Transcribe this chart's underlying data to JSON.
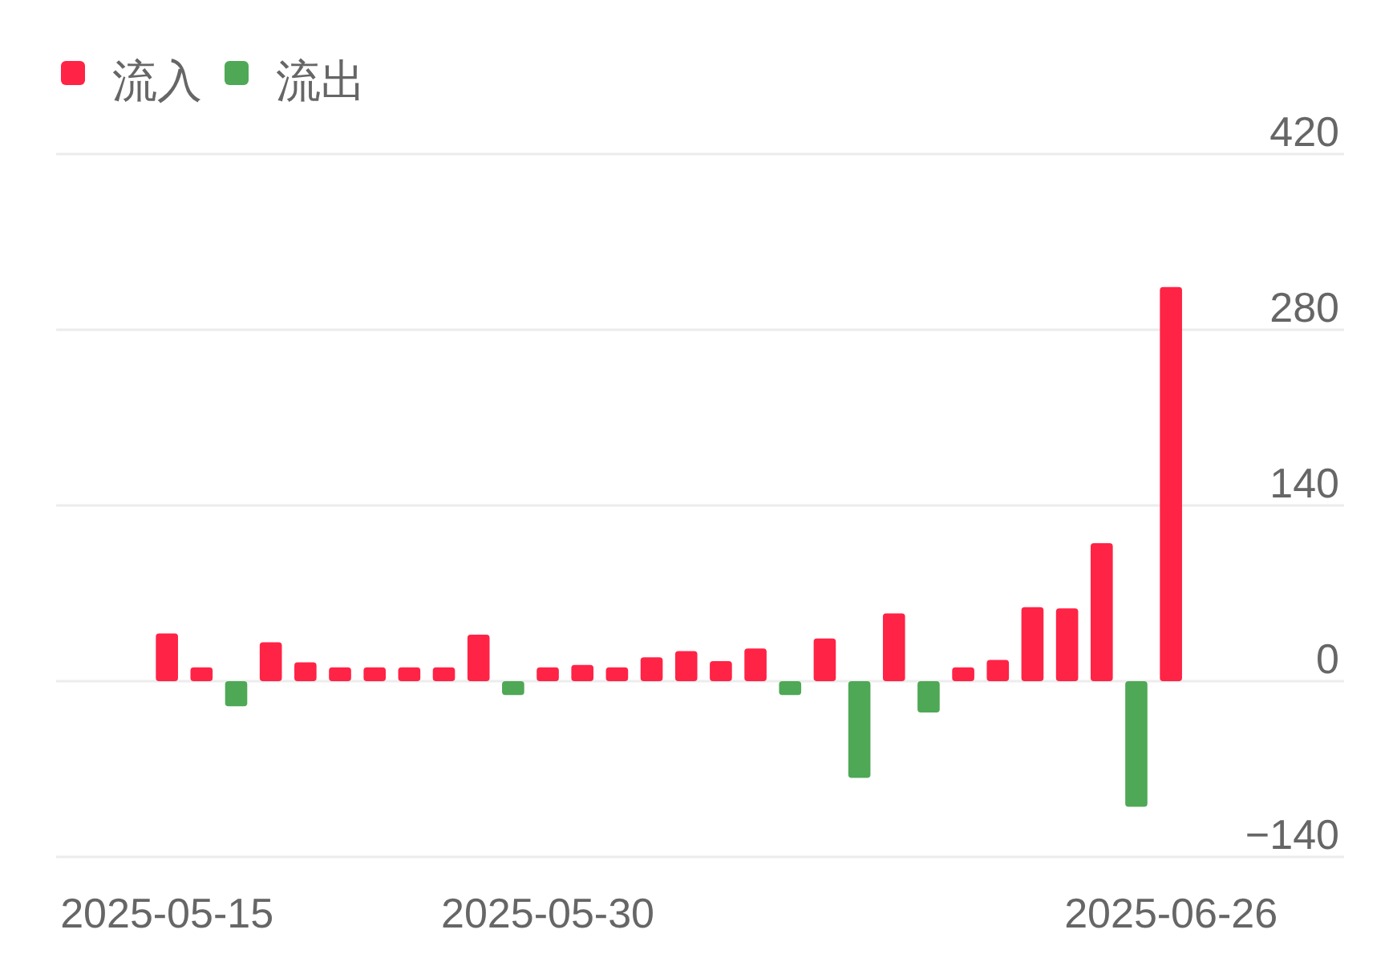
{
  "chart_data": {
    "type": "bar",
    "grid": "y",
    "legend": "top left",
    "categories": [
      "2025-05-15",
      null,
      null,
      null,
      null,
      null,
      null,
      null,
      null,
      null,
      null,
      "2025-05-30",
      null,
      null,
      null,
      null,
      null,
      null,
      null,
      null,
      null,
      null,
      null,
      null,
      null,
      null,
      null,
      null,
      null,
      "2025-06-26"
    ],
    "series": [
      {
        "name": "流入",
        "color": "#ff2346",
        "values": [
          38,
          11,
          null,
          31,
          15,
          11,
          11,
          11,
          11,
          37,
          null,
          11,
          13,
          11,
          19,
          24,
          16,
          26,
          null,
          34,
          null,
          54,
          null,
          11,
          17,
          59,
          58,
          110,
          null,
          314
        ]
      },
      {
        "name": "流出",
        "color": "#4ea856",
        "values": [
          null,
          null,
          -20,
          null,
          null,
          null,
          null,
          null,
          null,
          null,
          -11,
          null,
          null,
          null,
          null,
          null,
          null,
          null,
          -11,
          null,
          -77,
          null,
          -25,
          null,
          null,
          null,
          null,
          null,
          -100,
          null
        ]
      }
    ],
    "ylim": [
      -140,
      420
    ],
    "yticks": [
      {
        "value": -140,
        "label": "−140"
      },
      0,
      140,
      280,
      420
    ]
  }
}
